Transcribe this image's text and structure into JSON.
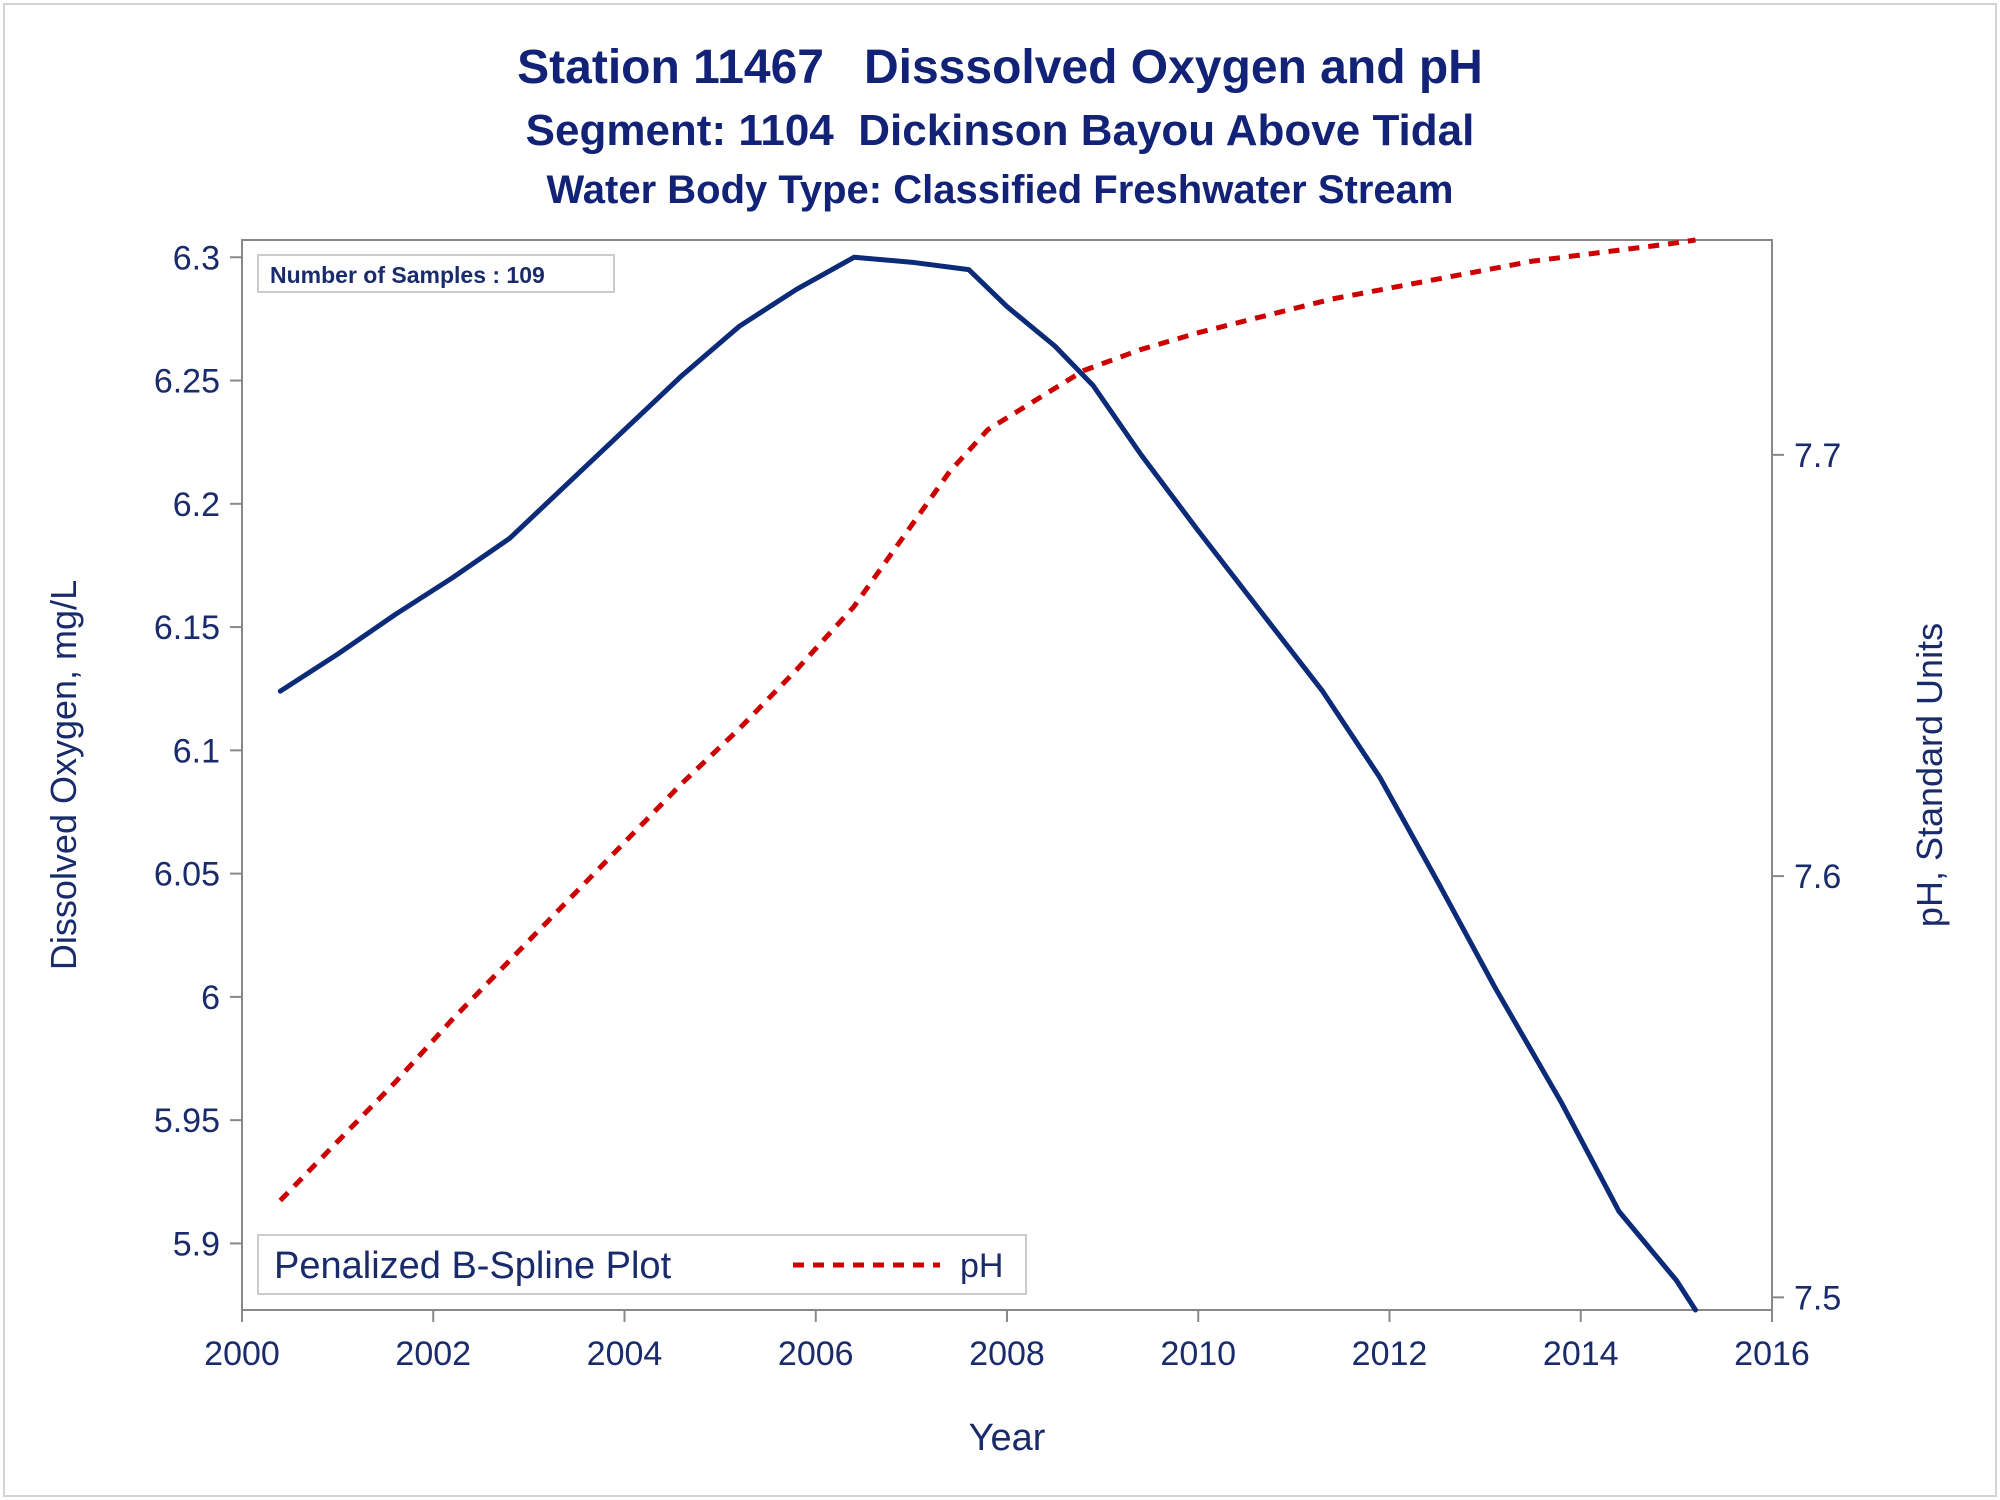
{
  "titles": {
    "line1": "Station 11467   Disssolved Oxygen and pH",
    "line2": "Segment: 1104  Dickinson Bayou Above Tidal",
    "line3": "Water Body Type: Classified Freshwater Stream"
  },
  "inset": {
    "text": "Number of Samples : 109"
  },
  "legend": {
    "label": "Penalized B-Spline Plot",
    "series_name": "pH"
  },
  "colors": {
    "oxygen": "#0b2a78",
    "ph": "#cc0000",
    "text": "#1a2b6b",
    "axis": "#888888"
  },
  "chart_data": {
    "type": "line",
    "x_label": "Year",
    "y_label_left": "Dissolved Oxygen, mg/L",
    "y_label_right": "pH, Standard Units",
    "x_range": [
      2000,
      2016
    ],
    "x_ticks": [
      2000,
      2002,
      2004,
      2006,
      2008,
      2010,
      2012,
      2014,
      2016
    ],
    "y_left_range": [
      5.873,
      6.307
    ],
    "y_left_ticks": [
      5.9,
      5.95,
      6,
      6.05,
      6.1,
      6.15,
      6.2,
      6.25,
      6.3
    ],
    "y_left_tick_labels": [
      "5.9",
      "5.95",
      "6",
      "6.05",
      "6.1",
      "6.15",
      "6.2",
      "6.25",
      "6.3"
    ],
    "y_right_range": [
      7.497,
      7.751
    ],
    "y_right_ticks": [
      7.5,
      7.6,
      7.7
    ],
    "y_right_tick_labels": [
      "7.5",
      "7.6",
      "7.7"
    ],
    "grid": false,
    "series": [
      {
        "axis": "left",
        "values": [
          [
            2000.4,
            6.124
          ],
          [
            2001.0,
            6.139
          ],
          [
            2001.6,
            6.155
          ],
          [
            2002.2,
            6.17
          ],
          [
            2002.8,
            6.186
          ],
          [
            2003.4,
            6.208
          ],
          [
            2004.0,
            6.23
          ],
          [
            2004.6,
            6.252
          ],
          [
            2005.2,
            6.272
          ],
          [
            2005.8,
            6.287
          ],
          [
            2006.4,
            6.3
          ],
          [
            2007.0,
            6.298
          ],
          [
            2007.6,
            6.295
          ],
          [
            2008.0,
            6.28
          ],
          [
            2008.5,
            6.264
          ],
          [
            2008.9,
            6.248
          ],
          [
            2009.4,
            6.22
          ],
          [
            2010.0,
            6.189
          ],
          [
            2010.6,
            6.159
          ],
          [
            2011.3,
            6.124
          ],
          [
            2011.9,
            6.089
          ],
          [
            2012.5,
            6.047
          ],
          [
            2013.1,
            6.004
          ],
          [
            2013.8,
            5.957
          ],
          [
            2014.4,
            5.913
          ],
          [
            2015.0,
            5.885
          ],
          [
            2015.2,
            5.873
          ]
        ]
      },
      {
        "name": "pH",
        "axis": "right",
        "values": [
          [
            2000.4,
            7.523
          ],
          [
            2001.0,
            7.537
          ],
          [
            2001.6,
            7.551
          ],
          [
            2002.2,
            7.566
          ],
          [
            2002.8,
            7.58
          ],
          [
            2003.4,
            7.594
          ],
          [
            2004.0,
            7.608
          ],
          [
            2004.6,
            7.622
          ],
          [
            2005.2,
            7.635
          ],
          [
            2005.8,
            7.649
          ],
          [
            2006.4,
            7.664
          ],
          [
            2006.9,
            7.68
          ],
          [
            2007.4,
            7.696
          ],
          [
            2007.8,
            7.706
          ],
          [
            2008.3,
            7.713
          ],
          [
            2008.8,
            7.72
          ],
          [
            2009.4,
            7.725
          ],
          [
            2010.0,
            7.729
          ],
          [
            2010.7,
            7.733
          ],
          [
            2011.4,
            7.737
          ],
          [
            2012.1,
            7.74
          ],
          [
            2012.8,
            7.743
          ],
          [
            2013.5,
            7.746
          ],
          [
            2014.2,
            7.748
          ],
          [
            2014.9,
            7.75
          ],
          [
            2015.2,
            7.751
          ]
        ]
      }
    ]
  }
}
